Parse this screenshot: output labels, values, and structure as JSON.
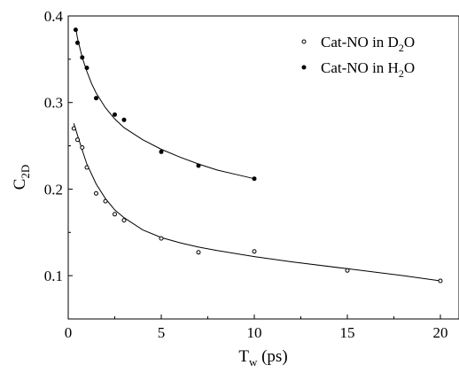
{
  "chart_data": {
    "type": "scatter",
    "xlabel": {
      "main": "T",
      "sub": "w",
      "rest": " (ps)"
    },
    "ylabel": {
      "main": "C",
      "sub": "2D"
    },
    "xlim": [
      0,
      21
    ],
    "ylim": [
      0.05,
      0.4
    ],
    "xticks": [
      0,
      5,
      10,
      15,
      20
    ],
    "xtick_labels": [
      "0",
      "5",
      "10",
      "15",
      "20"
    ],
    "yticks": [
      0.1,
      0.2,
      0.3,
      0.4
    ],
    "ytick_labels": [
      "0.1",
      "0.2",
      "0.3",
      "0.4"
    ],
    "grid": false,
    "legend_position": "top-right",
    "series": [
      {
        "name": "Cat-NO in D2O",
        "legend": {
          "pre": "Cat-NO in D",
          "sub": "2",
          "post": "O"
        },
        "marker": "open-circle",
        "color": "#000000",
        "x": [
          0.3,
          0.5,
          0.75,
          1.0,
          1.5,
          2.0,
          2.5,
          3.0,
          5.0,
          7.0,
          10.0,
          15.0,
          20.0
        ],
        "y": [
          0.27,
          0.257,
          0.248,
          0.225,
          0.195,
          0.186,
          0.171,
          0.164,
          0.143,
          0.127,
          0.128,
          0.106,
          0.094
        ],
        "fit_x": [
          0.3,
          0.5,
          0.75,
          1.0,
          1.5,
          2.0,
          2.5,
          3.0,
          4.0,
          5.0,
          6.0,
          7.0,
          8.0,
          10.0,
          12.0,
          15.0,
          18.0,
          20.0
        ],
        "fit_y": [
          0.276,
          0.262,
          0.245,
          0.229,
          0.206,
          0.189,
          0.176,
          0.167,
          0.153,
          0.144,
          0.138,
          0.133,
          0.129,
          0.122,
          0.116,
          0.108,
          0.1,
          0.094
        ]
      },
      {
        "name": "Cat-NO in H2O",
        "legend": {
          "pre": "Cat-NO in H",
          "sub": "2",
          "post": "O"
        },
        "marker": "filled-circle",
        "color": "#000000",
        "x": [
          0.4,
          0.5,
          0.75,
          1.0,
          1.5,
          2.5,
          3.0,
          5.0,
          7.0,
          10.0
        ],
        "y": [
          0.384,
          0.369,
          0.352,
          0.34,
          0.305,
          0.286,
          0.28,
          0.243,
          0.227,
          0.212
        ],
        "fit_x": [
          0.4,
          0.5,
          0.75,
          1.0,
          1.25,
          1.5,
          2.0,
          2.5,
          3.0,
          4.0,
          5.0,
          6.0,
          7.0,
          8.0,
          9.0,
          10.0
        ],
        "fit_y": [
          0.386,
          0.374,
          0.352,
          0.336,
          0.322,
          0.311,
          0.294,
          0.281,
          0.271,
          0.257,
          0.246,
          0.237,
          0.229,
          0.222,
          0.217,
          0.212
        ]
      }
    ]
  }
}
